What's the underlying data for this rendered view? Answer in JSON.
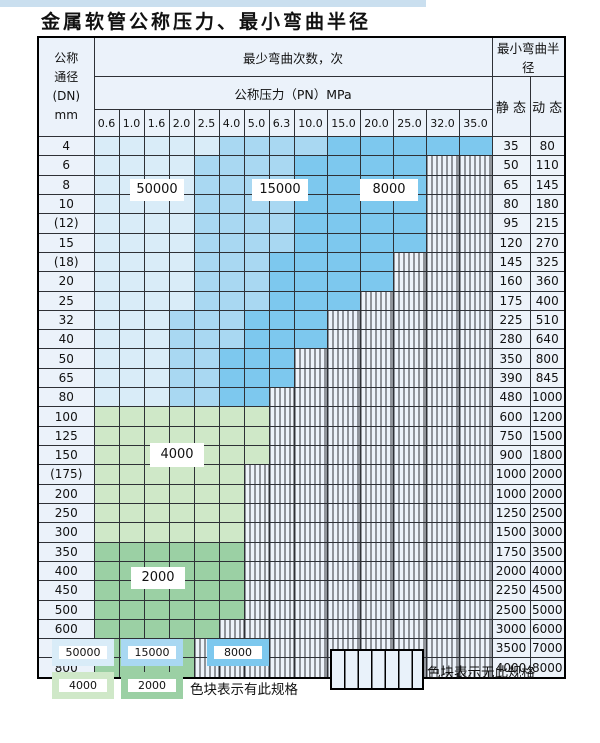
{
  "page": {
    "title": "金属软管公称压力、最小弯曲半径"
  },
  "colors": {
    "c50000": "#d9ecf8",
    "c15000": "#a9d8f2",
    "c8000": "#7dc8ee",
    "c4000": "#cfe8c8",
    "c2000": "#9bd0a4",
    "hatch_bg": "#edf3fa",
    "border": "#2e3136",
    "top_strip": "#cadfef"
  },
  "table": {
    "header": {
      "dn_lines": [
        "公称",
        "通径",
        "(DN)",
        "mm"
      ],
      "bend_cycles": "最少弯曲次数，次",
      "pressure": "公称压力（PN）MPa",
      "min_bend_radius": "最小弯曲半径",
      "static_label": "静 态",
      "dynamic_label": "动 态",
      "pressure_cols": [
        "0.6",
        "1.0",
        "1.6",
        "2.0",
        "2.5",
        "4.0",
        "5.0",
        "6.3",
        "10.0",
        "15.0",
        "20.0",
        "25.0",
        "32.0",
        "35.0"
      ]
    },
    "rows": [
      {
        "dn": "4",
        "colored_through": "35.0",
        "zone": "blue",
        "static": "35",
        "dynamic": "80"
      },
      {
        "dn": "6",
        "colored_through": "25.0",
        "zone": "blue",
        "static": "50",
        "dynamic": "110"
      },
      {
        "dn": "8",
        "colored_through": "25.0",
        "zone": "blue",
        "static": "65",
        "dynamic": "145"
      },
      {
        "dn": "10",
        "colored_through": "25.0",
        "zone": "blue",
        "static": "80",
        "dynamic": "180"
      },
      {
        "dn": "(12)",
        "colored_through": "25.0",
        "zone": "blue",
        "static": "95",
        "dynamic": "215"
      },
      {
        "dn": "15",
        "colored_through": "25.0",
        "zone": "blue",
        "static": "120",
        "dynamic": "270"
      },
      {
        "dn": "(18)",
        "colored_through": "20.0",
        "zone": "blue",
        "static": "145",
        "dynamic": "325"
      },
      {
        "dn": "20",
        "colored_through": "20.0",
        "zone": "blue",
        "static": "160",
        "dynamic": "360"
      },
      {
        "dn": "25",
        "colored_through": "15.0",
        "zone": "blue",
        "static": "175",
        "dynamic": "400"
      },
      {
        "dn": "32",
        "colored_through": "10.0",
        "zone": "blue",
        "static": "225",
        "dynamic": "510"
      },
      {
        "dn": "40",
        "colored_through": "10.0",
        "zone": "blue",
        "static": "280",
        "dynamic": "640"
      },
      {
        "dn": "50",
        "colored_through": "6.3",
        "zone": "blue",
        "static": "350",
        "dynamic": "800"
      },
      {
        "dn": "65",
        "colored_through": "6.3",
        "zone": "blue",
        "static": "390",
        "dynamic": "845"
      },
      {
        "dn": "80",
        "colored_through": "5.0",
        "zone": "blue",
        "static": "480",
        "dynamic": "1000"
      },
      {
        "dn": "100",
        "colored_through": "5.0",
        "zone": "green4000",
        "static": "600",
        "dynamic": "1200"
      },
      {
        "dn": "125",
        "colored_through": "5.0",
        "zone": "green4000",
        "static": "750",
        "dynamic": "1500"
      },
      {
        "dn": "150",
        "colored_through": "5.0",
        "zone": "green4000",
        "static": "900",
        "dynamic": "1800"
      },
      {
        "dn": "(175)",
        "colored_through": "4.0",
        "zone": "green4000",
        "static": "1000",
        "dynamic": "2000"
      },
      {
        "dn": "200",
        "colored_through": "4.0",
        "zone": "green4000",
        "static": "1000",
        "dynamic": "2000"
      },
      {
        "dn": "250",
        "colored_through": "4.0",
        "zone": "green4000",
        "static": "1250",
        "dynamic": "2500"
      },
      {
        "dn": "300",
        "colored_through": "4.0",
        "zone": "green4000",
        "static": "1500",
        "dynamic": "3000"
      },
      {
        "dn": "350",
        "colored_through": "4.0",
        "zone": "green2000",
        "static": "1750",
        "dynamic": "3500"
      },
      {
        "dn": "400",
        "colored_through": "4.0",
        "zone": "green2000",
        "static": "2000",
        "dynamic": "4000"
      },
      {
        "dn": "450",
        "colored_through": "4.0",
        "zone": "green2000",
        "static": "2250",
        "dynamic": "4500"
      },
      {
        "dn": "500",
        "colored_through": "4.0",
        "zone": "green2000",
        "static": "2500",
        "dynamic": "5000"
      },
      {
        "dn": "600",
        "colored_through": "2.5",
        "zone": "green2000",
        "static": "3000",
        "dynamic": "6000"
      },
      {
        "dn": "700",
        "colored_through": "2.0",
        "zone": "green2000",
        "static": "3500",
        "dynamic": "7000"
      },
      {
        "dn": "800",
        "colored_through": "2.0",
        "zone": "green2000",
        "static": "4000",
        "dynamic": "8000"
      }
    ]
  },
  "overlays": [
    {
      "text": "50000"
    },
    {
      "text": "15000"
    },
    {
      "text": "8000"
    },
    {
      "text": "4000"
    },
    {
      "text": "2000"
    }
  ],
  "legend": {
    "chips": [
      {
        "label": "50000",
        "color_key": "c50000"
      },
      {
        "label": "15000",
        "color_key": "c15000"
      },
      {
        "label": "8000",
        "color_key": "c8000"
      },
      {
        "label": "4000",
        "color_key": "c4000"
      },
      {
        "label": "2000",
        "color_key": "c2000"
      }
    ],
    "has_spec_note": "色块表示有此规格",
    "no_spec_note": "色块表示无此规格"
  }
}
